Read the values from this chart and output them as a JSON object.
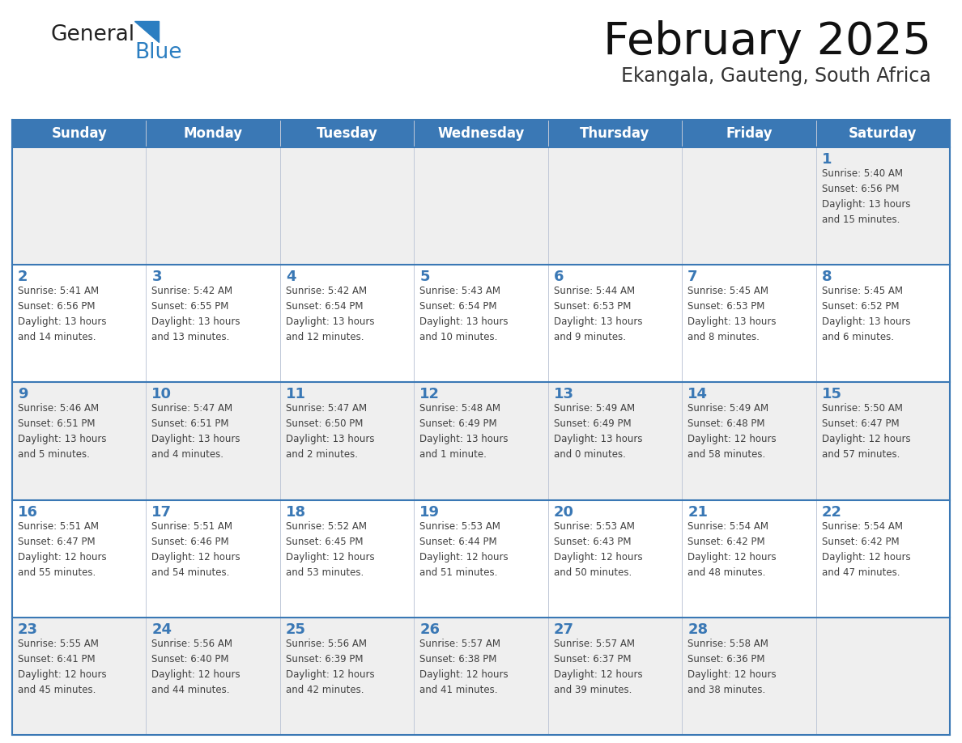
{
  "title": "February 2025",
  "subtitle": "Ekangala, Gauteng, South Africa",
  "header_bg": "#3a78b5",
  "header_text_color": "#ffffff",
  "cell_bg_light": "#efefef",
  "cell_bg_white": "#ffffff",
  "day_number_color": "#3a78b5",
  "text_color": "#404040",
  "border_color": "#3a78b5",
  "line_color": "#c0c8d8",
  "days_of_week": [
    "Sunday",
    "Monday",
    "Tuesday",
    "Wednesday",
    "Thursday",
    "Friday",
    "Saturday"
  ],
  "weeks": [
    [
      {
        "day": "",
        "info": ""
      },
      {
        "day": "",
        "info": ""
      },
      {
        "day": "",
        "info": ""
      },
      {
        "day": "",
        "info": ""
      },
      {
        "day": "",
        "info": ""
      },
      {
        "day": "",
        "info": ""
      },
      {
        "day": "1",
        "info": "Sunrise: 5:40 AM\nSunset: 6:56 PM\nDaylight: 13 hours\nand 15 minutes."
      }
    ],
    [
      {
        "day": "2",
        "info": "Sunrise: 5:41 AM\nSunset: 6:56 PM\nDaylight: 13 hours\nand 14 minutes."
      },
      {
        "day": "3",
        "info": "Sunrise: 5:42 AM\nSunset: 6:55 PM\nDaylight: 13 hours\nand 13 minutes."
      },
      {
        "day": "4",
        "info": "Sunrise: 5:42 AM\nSunset: 6:54 PM\nDaylight: 13 hours\nand 12 minutes."
      },
      {
        "day": "5",
        "info": "Sunrise: 5:43 AM\nSunset: 6:54 PM\nDaylight: 13 hours\nand 10 minutes."
      },
      {
        "day": "6",
        "info": "Sunrise: 5:44 AM\nSunset: 6:53 PM\nDaylight: 13 hours\nand 9 minutes."
      },
      {
        "day": "7",
        "info": "Sunrise: 5:45 AM\nSunset: 6:53 PM\nDaylight: 13 hours\nand 8 minutes."
      },
      {
        "day": "8",
        "info": "Sunrise: 5:45 AM\nSunset: 6:52 PM\nDaylight: 13 hours\nand 6 minutes."
      }
    ],
    [
      {
        "day": "9",
        "info": "Sunrise: 5:46 AM\nSunset: 6:51 PM\nDaylight: 13 hours\nand 5 minutes."
      },
      {
        "day": "10",
        "info": "Sunrise: 5:47 AM\nSunset: 6:51 PM\nDaylight: 13 hours\nand 4 minutes."
      },
      {
        "day": "11",
        "info": "Sunrise: 5:47 AM\nSunset: 6:50 PM\nDaylight: 13 hours\nand 2 minutes."
      },
      {
        "day": "12",
        "info": "Sunrise: 5:48 AM\nSunset: 6:49 PM\nDaylight: 13 hours\nand 1 minute."
      },
      {
        "day": "13",
        "info": "Sunrise: 5:49 AM\nSunset: 6:49 PM\nDaylight: 13 hours\nand 0 minutes."
      },
      {
        "day": "14",
        "info": "Sunrise: 5:49 AM\nSunset: 6:48 PM\nDaylight: 12 hours\nand 58 minutes."
      },
      {
        "day": "15",
        "info": "Sunrise: 5:50 AM\nSunset: 6:47 PM\nDaylight: 12 hours\nand 57 minutes."
      }
    ],
    [
      {
        "day": "16",
        "info": "Sunrise: 5:51 AM\nSunset: 6:47 PM\nDaylight: 12 hours\nand 55 minutes."
      },
      {
        "day": "17",
        "info": "Sunrise: 5:51 AM\nSunset: 6:46 PM\nDaylight: 12 hours\nand 54 minutes."
      },
      {
        "day": "18",
        "info": "Sunrise: 5:52 AM\nSunset: 6:45 PM\nDaylight: 12 hours\nand 53 minutes."
      },
      {
        "day": "19",
        "info": "Sunrise: 5:53 AM\nSunset: 6:44 PM\nDaylight: 12 hours\nand 51 minutes."
      },
      {
        "day": "20",
        "info": "Sunrise: 5:53 AM\nSunset: 6:43 PM\nDaylight: 12 hours\nand 50 minutes."
      },
      {
        "day": "21",
        "info": "Sunrise: 5:54 AM\nSunset: 6:42 PM\nDaylight: 12 hours\nand 48 minutes."
      },
      {
        "day": "22",
        "info": "Sunrise: 5:54 AM\nSunset: 6:42 PM\nDaylight: 12 hours\nand 47 minutes."
      }
    ],
    [
      {
        "day": "23",
        "info": "Sunrise: 5:55 AM\nSunset: 6:41 PM\nDaylight: 12 hours\nand 45 minutes."
      },
      {
        "day": "24",
        "info": "Sunrise: 5:56 AM\nSunset: 6:40 PM\nDaylight: 12 hours\nand 44 minutes."
      },
      {
        "day": "25",
        "info": "Sunrise: 5:56 AM\nSunset: 6:39 PM\nDaylight: 12 hours\nand 42 minutes."
      },
      {
        "day": "26",
        "info": "Sunrise: 5:57 AM\nSunset: 6:38 PM\nDaylight: 12 hours\nand 41 minutes."
      },
      {
        "day": "27",
        "info": "Sunrise: 5:57 AM\nSunset: 6:37 PM\nDaylight: 12 hours\nand 39 minutes."
      },
      {
        "day": "28",
        "info": "Sunrise: 5:58 AM\nSunset: 6:36 PM\nDaylight: 12 hours\nand 38 minutes."
      },
      {
        "day": "",
        "info": ""
      }
    ]
  ],
  "logo_general_color": "#222222",
  "logo_blue_color": "#2b7ec1",
  "figsize": [
    11.88,
    9.18
  ],
  "dpi": 100
}
